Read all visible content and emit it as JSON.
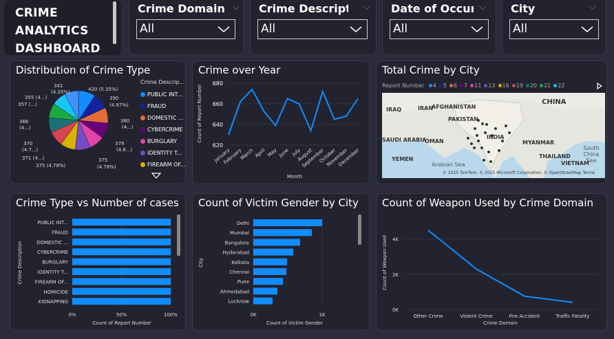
{
  "header": {
    "logo_line1": "CRIME",
    "logo_line2": "ANALYTICS",
    "logo_line3": "DASHBOARD"
  },
  "slicers": [
    {
      "title": "Crime Domain",
      "value": "All"
    },
    {
      "title": "Crime Descripti...",
      "value": "All"
    },
    {
      "title": "Date of Occur...",
      "value": "All"
    },
    {
      "title": "City",
      "value": "All"
    }
  ],
  "pie": {
    "title": "Distribution of Crime Type",
    "legend_title": "Crime Descrip...",
    "legend": [
      {
        "label": "PUBLIC INT...",
        "color": "#118dff"
      },
      {
        "label": "FRAUD",
        "color": "#12239e"
      },
      {
        "label": "DOMESTIC ...",
        "color": "#e66c37"
      },
      {
        "label": "CYBERCRIME",
        "color": "#6b007b"
      },
      {
        "label": "BURGLARY",
        "color": "#e044a7"
      },
      {
        "label": "IDENTITY T...",
        "color": "#744ec2"
      },
      {
        "label": "FIREARM OF...",
        "color": "#d9b300"
      }
    ],
    "labels": [
      "341",
      "(4.35%)",
      "420 (5.35%)",
      "390",
      "(4.97%)",
      "380",
      "(4...)",
      "379",
      "(4.8...)",
      "375",
      "(4.78%)",
      "375 (4.78%)",
      "371 (4...)",
      "370",
      "(4.7...)",
      "366",
      "(4...)",
      "357 (...)",
      "355 (4...)"
    ]
  },
  "line_year": {
    "title": "Crime over Year",
    "ylabel": "Count of Report Number",
    "xlabel": "Month",
    "y_ticks": [
      "680",
      "660",
      "640",
      "620"
    ]
  },
  "map": {
    "title": "Total Crime by City",
    "legend_label": "Report Number",
    "legend": [
      {
        "label": "4",
        "color": "#118dff"
      },
      {
        "label": "5",
        "color": "#12239e"
      },
      {
        "label": "6",
        "color": "#e66c37"
      },
      {
        "label": "7",
        "color": "#6b007b"
      },
      {
        "label": "11",
        "color": "#e044a7"
      },
      {
        "label": "13",
        "color": "#744ec2"
      },
      {
        "label": "16",
        "color": "#d9b300"
      },
      {
        "label": "19",
        "color": "#d64550"
      },
      {
        "label": "20",
        "color": "#197278"
      },
      {
        "label": "21",
        "color": "#1aab40"
      },
      {
        "label": "22",
        "color": "#15c6f4"
      }
    ],
    "places": [
      "IRAQ",
      "IRAN",
      "AFGHANISTAN",
      "CHINA",
      "PAKISTAN",
      "SAUDI ARABIA",
      "OMAN",
      "INDIA",
      "MYANMAR",
      "THAILAND",
      "VIETNAM",
      "YEMEN",
      "Arabian Sea",
      "South China Sea"
    ],
    "copyright": "© 2025 TomTom, © 2025 Microsoft Corporation, © OpenStreetMap Terms"
  },
  "bar_crime": {
    "title": "Crime Type vs Number of cases",
    "ylabel": "Crime Description",
    "xlabel": "Count of Report Number",
    "x_ticks": [
      "0%",
      "50%",
      "100%"
    ],
    "categories": [
      "PUBLIC INT...",
      "FRAUD",
      "DOMESTIC ...",
      "CYBERCRIME",
      "BURGLARY",
      "IDENTITY T...",
      "FIREARM OF...",
      "HOMICIDE",
      "KIDNAPPING"
    ]
  },
  "bar_gender": {
    "title": "Count of Victim Gender by City",
    "ylabel": "City",
    "xlabel": "Count of Victim Gender",
    "x_ticks": [
      "0K",
      "1K"
    ],
    "categories": [
      "Delhi",
      "Mumbai",
      "Bangalore",
      "Hyderabad",
      "Kolkata",
      "Chennai",
      "Pune",
      "Ahmedabad",
      "Lucknow"
    ]
  },
  "weapon": {
    "title": "Count of Weapon Used by Crime Domain",
    "ylabel": "Count of Weapon Used",
    "xlabel": "Crime Domain",
    "y_ticks": [
      "4K",
      "2K",
      "0K"
    ]
  },
  "chart_data": [
    {
      "type": "pie",
      "title": "Distribution of Crime Type",
      "categories": [
        "PUBLIC INT...",
        "FRAUD",
        "DOMESTIC ...",
        "CYBERCRIME",
        "BURGLARY",
        "IDENTITY T...",
        "FIREARM OF...",
        "...",
        "...",
        "...",
        "...",
        "..."
      ],
      "values": [
        420,
        390,
        380,
        379,
        375,
        375,
        371,
        370,
        366,
        357,
        355,
        341
      ]
    },
    {
      "type": "line",
      "title": "Crime over Year",
      "xlabel": "Month",
      "ylabel": "Count of Report Number",
      "x": [
        "January",
        "February",
        "March",
        "April",
        "May",
        "June",
        "July",
        "August",
        "September",
        "October",
        "November",
        "December"
      ],
      "values": [
        630,
        662,
        674,
        653,
        639,
        665,
        660,
        634,
        672,
        645,
        648,
        665
      ],
      "ylim": [
        620,
        680
      ]
    },
    {
      "type": "bar",
      "title": "Crime Type vs Number of cases",
      "xlabel": "Count of Report Number",
      "ylabel": "Crime Description",
      "categories": [
        "PUBLIC INT...",
        "FRAUD",
        "DOMESTIC ...",
        "CYBERCRIME",
        "BURGLARY",
        "IDENTITY T...",
        "FIREARM OF...",
        "HOMICIDE",
        "KIDNAPPING"
      ],
      "values": [
        100,
        100,
        100,
        100,
        100,
        100,
        100,
        100,
        100
      ],
      "xlim": [
        0,
        100
      ]
    },
    {
      "type": "bar",
      "title": "Count of Victim Gender by City",
      "xlabel": "Count of Victim Gender",
      "ylabel": "City",
      "categories": [
        "Delhi",
        "Mumbai",
        "Bangalore",
        "Hyderabad",
        "Kolkata",
        "Chennai",
        "Pune",
        "Ahmedabad",
        "Lucknow"
      ],
      "values": [
        1000,
        850,
        680,
        580,
        490,
        480,
        430,
        350,
        280
      ],
      "xlim": [
        0,
        1000
      ]
    },
    {
      "type": "line",
      "title": "Count of Weapon Used by Crime Domain",
      "xlabel": "Crime Domain",
      "ylabel": "Count of Weapon Used",
      "x": [
        "Other Crime",
        "Violent Crime",
        "Fire Accident",
        "Traffic Fatality"
      ],
      "values": [
        4500,
        2300,
        750,
        400
      ],
      "ylim": [
        0,
        5000
      ]
    }
  ]
}
